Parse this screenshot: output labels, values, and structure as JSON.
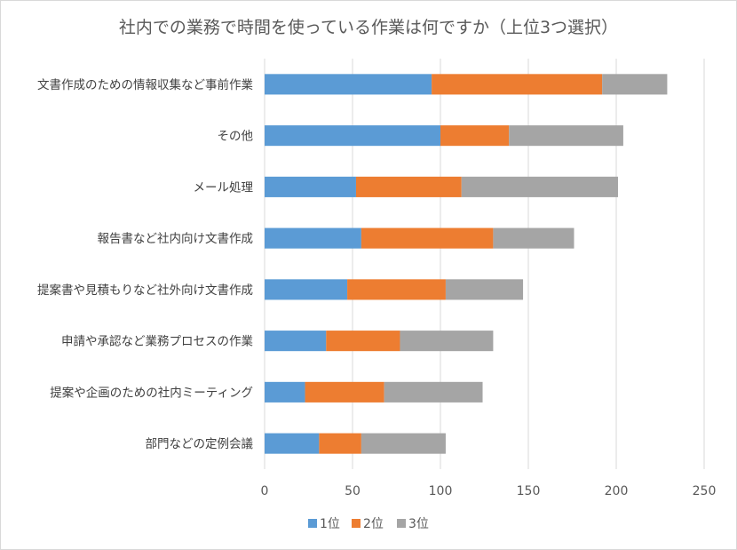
{
  "chart_data": {
    "type": "bar",
    "orientation": "horizontal",
    "stacked": true,
    "title": "社内での業務で時間を使っている作業は何ですか（上位3つ選択）",
    "categories": [
      "文書作成のための情報収集など事前作業",
      "その他",
      "メール処理",
      "報告書など社内向け文書作成",
      "提案書や見積もりなど社外向け文書作成",
      "申請や承認など業務プロセスの作業",
      "提案や企画のための社内ミーティング",
      "部門などの定例会議"
    ],
    "series": [
      {
        "name": "1位",
        "color": "#5b9bd5",
        "values": [
          95,
          100,
          52,
          55,
          47,
          35,
          23,
          31
        ]
      },
      {
        "name": "2位",
        "color": "#ed7d31",
        "values": [
          97,
          39,
          60,
          75,
          56,
          42,
          45,
          24
        ]
      },
      {
        "name": "3位",
        "color": "#a5a5a5",
        "values": [
          37,
          65,
          89,
          46,
          44,
          53,
          56,
          48
        ]
      }
    ],
    "xlim": [
      0,
      250
    ],
    "xticks": [
      0,
      50,
      100,
      150,
      200,
      250
    ],
    "xlabel": "",
    "ylabel": "",
    "grid": true,
    "legend": "bottom"
  }
}
